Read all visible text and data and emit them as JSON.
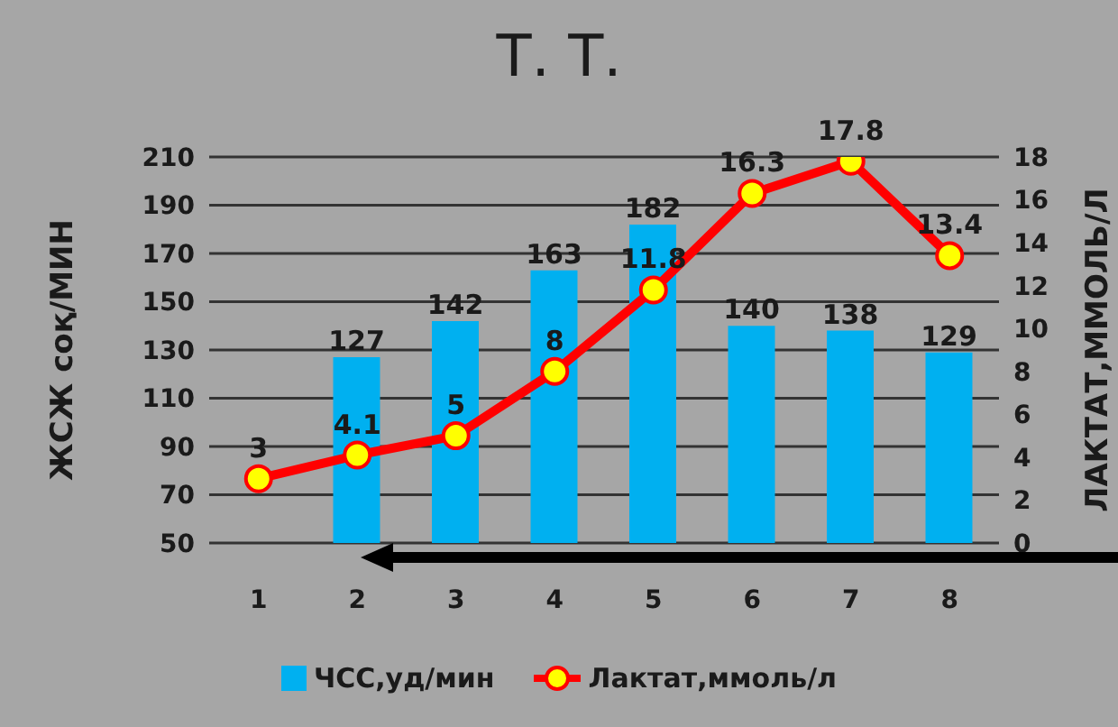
{
  "chart_data": {
    "type": "bar",
    "title": "Т. Т.",
    "ylabel": "ЖСЖ соқ/МИН",
    "y2label": "ЛАКТАТ,ММОЛЬ/Л",
    "categories": [
      "1",
      "2",
      "3",
      "4",
      "5",
      "6",
      "7",
      "8"
    ],
    "series": [
      {
        "name": "ЧСС,уд/мин",
        "color": "#00b0f0",
        "values": [
          null,
          127,
          142,
          163,
          182,
          140,
          138,
          129
        ]
      },
      {
        "name": "Лактат,ммоль/л",
        "type": "line",
        "axis": "y2",
        "color": "#ff0000",
        "marker": "circle",
        "values": [
          3,
          4.1,
          5,
          8,
          11.8,
          16.3,
          17.8,
          13.4
        ]
      }
    ],
    "ylim": [
      50,
      210
    ],
    "yticks": [
      50,
      70,
      90,
      110,
      130,
      150,
      170,
      190,
      210
    ],
    "y2lim": [
      0,
      18
    ],
    "y2ticks": [
      0,
      2,
      4,
      6,
      8,
      10,
      12,
      14,
      16,
      18
    ],
    "grid": "y",
    "legend": "bottom",
    "data_labels": true
  }
}
